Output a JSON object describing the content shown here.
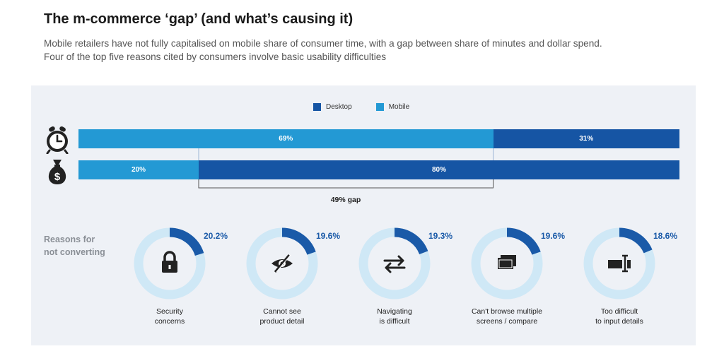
{
  "title": "The m-commerce ‘gap’ (and what’s causing it)",
  "subtitle_lines": [
    "Mobile retailers have not fully capitalised on mobile share of consumer time, with a gap between share of minutes and dollar spend.",
    "Four of the top five reasons cited by consumers involve basic usability difficulties"
  ],
  "colors": {
    "desktop": "#1655a4",
    "mobile": "#2399d4",
    "ring_track": "#cfe8f6",
    "ring_fill": "#1a5aa8",
    "panel": "#eef1f6"
  },
  "chart_data": [
    {
      "type": "bar",
      "orientation": "horizontal",
      "stacked": true,
      "percent_stacked": true,
      "categories": [
        "clock-icon",
        "money-bag-icon"
      ],
      "series": [
        {
          "name": "Mobile",
          "values": [
            69,
            20
          ],
          "labels": [
            "69%",
            "20%"
          ]
        },
        {
          "name": "Desktop",
          "values": [
            31,
            80
          ],
          "labels": [
            "31%",
            "80%"
          ]
        }
      ],
      "legend": [
        "Desktop",
        "Mobile"
      ],
      "legend_position": "top",
      "annotation": {
        "text": "49% gap",
        "from": 20,
        "to": 69
      }
    },
    {
      "type": "pie",
      "style": "donut",
      "heading": [
        "Reasons for",
        "not converting"
      ],
      "slices": [
        {
          "label": [
            "Security",
            "concerns"
          ],
          "value": 20.2,
          "display": "20.2%",
          "icon": "lock-icon"
        },
        {
          "label": [
            "Cannot see",
            "product detail"
          ],
          "value": 19.6,
          "display": "19.6%",
          "icon": "eye-slash-icon"
        },
        {
          "label": [
            "Navigating",
            "is difficult"
          ],
          "value": 19.3,
          "display": "19.3%",
          "icon": "arrows-swap-icon"
        },
        {
          "label": [
            "Can't browse multiple",
            "screens / compare"
          ],
          "value": 19.6,
          "display": "19.6%",
          "icon": "windows-icon"
        },
        {
          "label": [
            "Too difficult",
            "to input details"
          ],
          "value": 18.6,
          "display": "18.6%",
          "icon": "text-cursor-icon"
        }
      ]
    }
  ]
}
